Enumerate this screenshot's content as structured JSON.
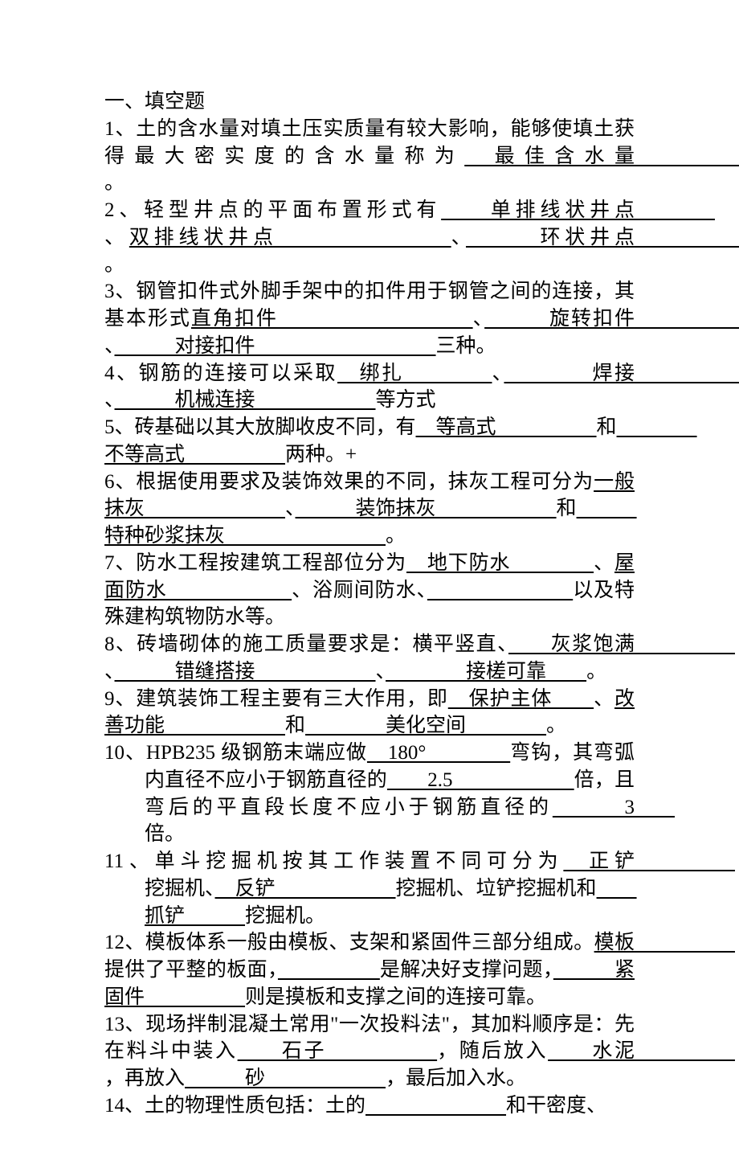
{
  "heading": "一、填空题",
  "q1": {
    "p1": "1、土的含水量对填土压实质量有较大影响，能够使填土获得最大密实度的含水量称为",
    "a1": "　最佳含水量　　　　　　　　",
    "p2": "。"
  },
  "q2": {
    "p1": "2、轻型井点的平面布置形式有",
    "a1": "　　单排线状井点　　　　",
    "p2": "、",
    "a2": "双排线状井点　　　　　　　",
    "p3": "、",
    "a3": "　　　环状井点　　　　　　　",
    "p4": "。"
  },
  "q3": {
    "p1": "3、钢管扣件式外脚手架中的扣件用于钢管之间的连接，其基本形式",
    "a1": "直角扣件　　　　　　　　　",
    "p2": "、",
    "a2": "　　　旋转扣件　　　　　　",
    "p3": "、",
    "a3": "　　　对接扣件　　　　　　　　　",
    "p4": "三种。"
  },
  "q4": {
    "p1": "4、钢筋的连接可以采取",
    "a1": "　绑扎　　　　",
    "p2": "、",
    "a2": "　　　　焊接　　　　　　",
    "p3": "、",
    "a3": "　　　机械连接　　　　　　",
    "p4": "等方式"
  },
  "q5": {
    "p1": "5、砖基础以其大放脚收皮不同，有",
    "a1": "　等高式　　　　　",
    "p2": "和",
    "a2": "　　　　不等高式　　　　　",
    "p3": "两种。+"
  },
  "q6": {
    "p1": "6、根据使用要求及装饰效果的不同，抹灰工程可分为",
    "a1": "一般抹灰　　　　　　　",
    "p2": "、",
    "a2": "　　　装饰抹灰　　　　　　",
    "p3": "和",
    "a3": "　　　特种砂浆抹灰　　　　　　　　",
    "p4": "。"
  },
  "q7": {
    "p1": "7、防水工程按建筑工程部位分为",
    "a1": "　地下防水　　　　",
    "p2": "、",
    "a2": "屋面防水　　　　　　",
    "p3": "、浴厕间防水、",
    "a3": "　　　　　　　",
    "p4": "以及特殊建构筑物防水等。"
  },
  "q8": {
    "p1": "8、砖墙砌体的施工质量要求是：横平竖直、",
    "a1": "　　灰浆饱满　　　　　",
    "p2": "、",
    "a2": "　　　错缝搭接　　　　　　",
    "p3": "、",
    "a3": "　　　　接槎可靠　　",
    "p4": "。"
  },
  "q9": {
    "p1": "9、建筑装饰工程主要有三大作用，即",
    "a1": "　保护主体　　",
    "p2": "、",
    "a2": "改善功能　　　　　　",
    "p3": "和",
    "a3": "　　　　美化空间　　　　",
    "p4": "。"
  },
  "q10": {
    "p1": "10、HPB235 级钢筋末端应做",
    "a1": "　180°　　　　",
    "p2": "弯钩，其弯弧内直径不应小于钢筋直径的",
    "a2": "　　2.5　　　　　　",
    "p3": "倍，且弯后的平直段长度不应小于钢筋直径的",
    "a3": "　　　3　　",
    "p4": "倍。"
  },
  "q11": {
    "p1": "11、单斗挖掘机按其工作装置不同可分为",
    "a1": "　正铲　　　　　",
    "p2": "挖掘机、",
    "a2": "　反铲　　　　　　",
    "p3": "挖掘机、垃铲挖掘机和",
    "a3": "　　抓铲　　　",
    "p4": "挖掘机。"
  },
  "q12": {
    "p1": "12、模板体系一般由模板、支架和紧固件三部分组成。",
    "a1": "模板　　　　　",
    "p2": "提供了平整的板面，",
    "a2": "　　　　　",
    "p3": "是解决好支撑问题，",
    "a3": "　　　紧固件　　　　　",
    "p4": "则是摸板和支撑之间的连接可靠。"
  },
  "q13": {
    "p1": "13、现场拌制混凝土常用\"一次投料法\"，其加料顺序是：先在料斗中装入",
    "a1": "　　石子　　　　　",
    "p2": "，随后放入",
    "a2": "　　水泥　　　　　",
    "p3": "，再放入",
    "a3": "　　　砂　　　　　　",
    "p4": "，最后加入水。"
  },
  "q14": {
    "p1": "14、土的物理性质包括：土的",
    "a1": "　　　　　　　",
    "p2": "和干密度、"
  }
}
